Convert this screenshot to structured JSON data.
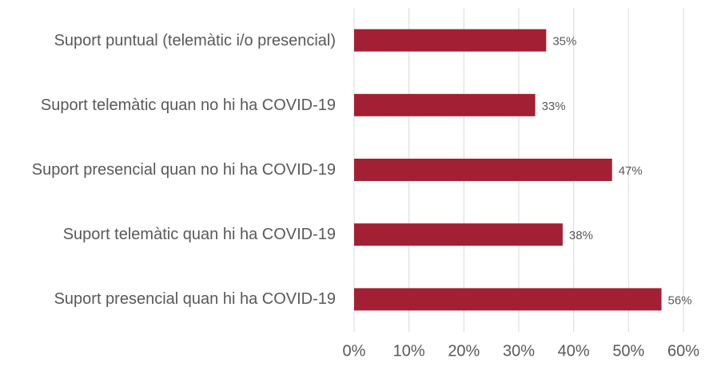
{
  "chart_data": {
    "type": "barh",
    "categories": [
      "Suport puntual (telemàtic i/o presencial)",
      "Suport telemàtic quan no hi ha COVID-19",
      "Suport presencial quan no hi ha COVID-19",
      "Suport telemàtic quan hi ha COVID-19",
      "Suport presencial quan hi ha COVID-19"
    ],
    "values": [
      35,
      33,
      47,
      38,
      56
    ],
    "value_labels": [
      "35%",
      "33%",
      "47%",
      "38%",
      "56%"
    ],
    "color": "#a31f34",
    "xlim": [
      0,
      60
    ],
    "xticks": [
      {
        "value": 0,
        "label": "0%"
      },
      {
        "value": 10,
        "label": "10%"
      },
      {
        "value": 20,
        "label": "20%"
      },
      {
        "value": 30,
        "label": "30%"
      },
      {
        "value": 40,
        "label": "40%"
      },
      {
        "value": 50,
        "label": "50%"
      },
      {
        "value": 60,
        "label": "60%"
      }
    ],
    "grid": true
  }
}
